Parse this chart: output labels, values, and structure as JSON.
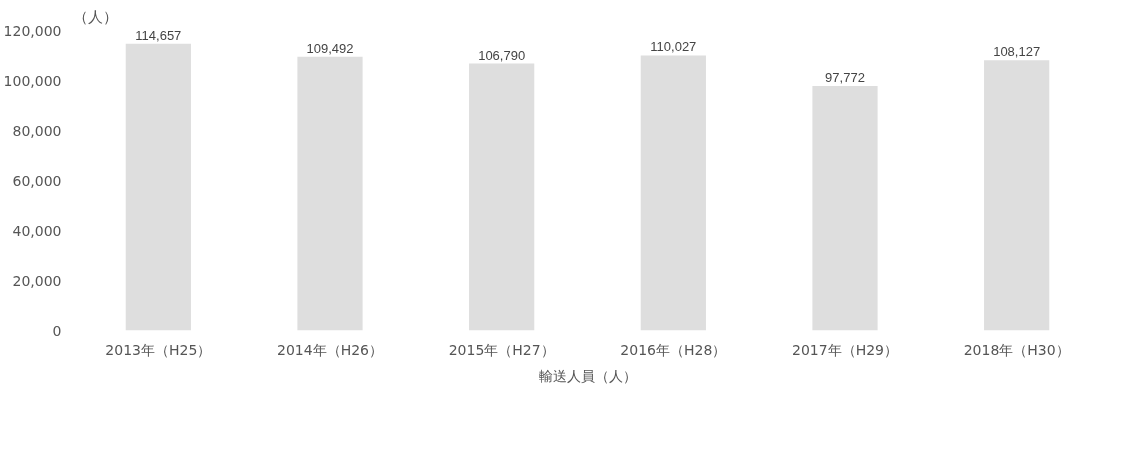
{
  "chart_data": {
    "type": "bar",
    "ylabel": "（人）",
    "categories": [
      "2013年（H25）",
      "2014年（H26）",
      "2015年（H27）",
      "2016年（H28）",
      "2017年（H29）",
      "2018年（H30）"
    ],
    "series": [
      {
        "name": "輸送人員（人）",
        "color": "#dedede",
        "values": [
          114657,
          109492,
          106790,
          110027,
          97772,
          108127
        ],
        "value_labels": [
          "114,657",
          "109,492",
          "106,790",
          "110,027",
          "97,772",
          "108,127"
        ]
      }
    ],
    "ylim": [
      0,
      120000
    ],
    "yticks": [
      0,
      {
        "value": 20000,
        "label": "20,000"
      },
      {
        "value": 40000,
        "label": "40,000"
      },
      {
        "value": 60000,
        "label": "60,000"
      },
      {
        "value": 80000,
        "label": "80,000"
      },
      {
        "value": 100000,
        "label": "100,000"
      },
      {
        "value": 120000,
        "label": "120,000"
      }
    ],
    "grid": false
  }
}
